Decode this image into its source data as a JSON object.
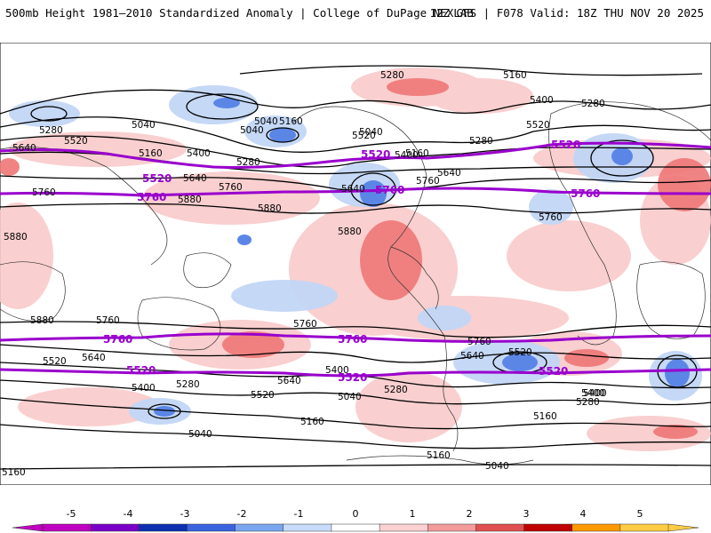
{
  "header": {
    "title": "500mb Height 1981—2010 Standardized Anomaly | College of DuPage NEXLAB",
    "run": "12Z GFS | F078 Valid: 18Z THU NOV 20 2025"
  },
  "map": {
    "highlight_contours": [
      "5520",
      "5760"
    ],
    "contour_labels": [
      "5280",
      "5160",
      "5400",
      "5280",
      "5160",
      "5040",
      "5160",
      "5280",
      "5040",
      "5640",
      "5520",
      "5400",
      "5520",
      "5640",
      "5280",
      "5160",
      "5400",
      "5760",
      "5520",
      "5640",
      "5280",
      "5760",
      "5880",
      "5880",
      "5640",
      "5760",
      "5760",
      "5880",
      "5880",
      "5760",
      "5880",
      "5760",
      "5640",
      "5760",
      "5520",
      "5640",
      "5400",
      "5520",
      "5280",
      "5160",
      "5040",
      "5640",
      "5400",
      "5400",
      "5040",
      "5280",
      "5160",
      "5520",
      "5400",
      "5280",
      "5160",
      "5040",
      "5160",
      "5040",
      "5040"
    ],
    "purple_labels": [
      "5520",
      "5760",
      "5520",
      "5760",
      "5520",
      "5760",
      "5760",
      "5760",
      "5520",
      "5520",
      "5520"
    ]
  },
  "legend": {
    "ticks": [
      "-5",
      "-4",
      "-3",
      "-2",
      "-1",
      "0",
      "1",
      "2",
      "3",
      "4",
      "5"
    ],
    "colors": [
      "#c000c0",
      "#7a00c8",
      "#0d2fb0",
      "#3b63e0",
      "#7aa6f0",
      "#c8dcfa",
      "#ffffff",
      "#fad0d0",
      "#f39a9a",
      "#e05050",
      "#c00000",
      "#ff9900",
      "#ffcc44"
    ]
  }
}
